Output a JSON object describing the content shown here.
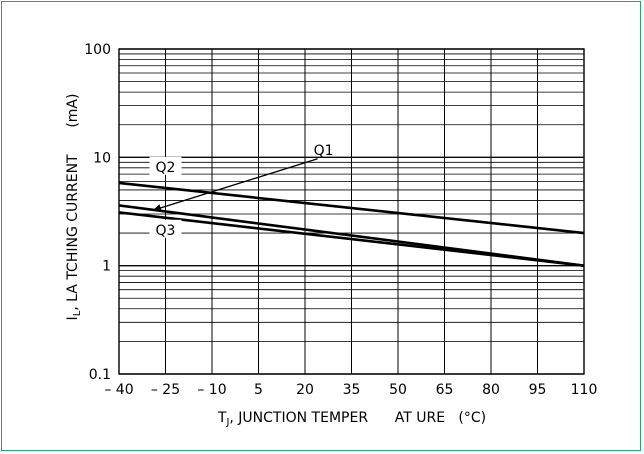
{
  "chart_data": {
    "type": "line",
    "title": "",
    "xlabel_parts": {
      "pre": "T",
      "sub": "J",
      "post": ", JUNCTION TEMPER      AT URE   (°C)"
    },
    "ylabel_parts": {
      "pre": "I",
      "sub": "L",
      "post": ", LA TCHING CURRENT      (mA)"
    },
    "xlim": [
      -40,
      110
    ],
    "ylim": [
      0.1,
      100
    ],
    "yscale": "log",
    "grid": true,
    "x_ticks": [
      -40,
      -25,
      -10,
      5,
      20,
      35,
      50,
      65,
      80,
      95,
      110
    ],
    "x_tick_labels": [
      "– 40",
      "– 25",
      "– 10",
      "5",
      "20",
      "35",
      "50",
      "65",
      "80",
      "95",
      "110"
    ],
    "y_ticks": [
      0.1,
      1,
      10,
      100
    ],
    "y_tick_labels": [
      "0.1",
      "1",
      "10",
      "100"
    ],
    "series": [
      {
        "name": "Q1",
        "x": [
          -40,
          110
        ],
        "y": [
          3.6,
          1.0
        ]
      },
      {
        "name": "Q2",
        "x": [
          -40,
          110
        ],
        "y": [
          5.8,
          2.0
        ]
      },
      {
        "name": "Q3",
        "x": [
          -40,
          110
        ],
        "y": [
          3.1,
          1.0
        ]
      }
    ],
    "series_labels": [
      {
        "text": "Q1",
        "x": 26,
        "y": 11.5,
        "arrow_to": [
          -30,
          3.0
        ]
      },
      {
        "text": "Q2",
        "x": -25,
        "y": 8.0
      },
      {
        "text": "Q3",
        "x": -25,
        "y": 2.1
      }
    ]
  }
}
